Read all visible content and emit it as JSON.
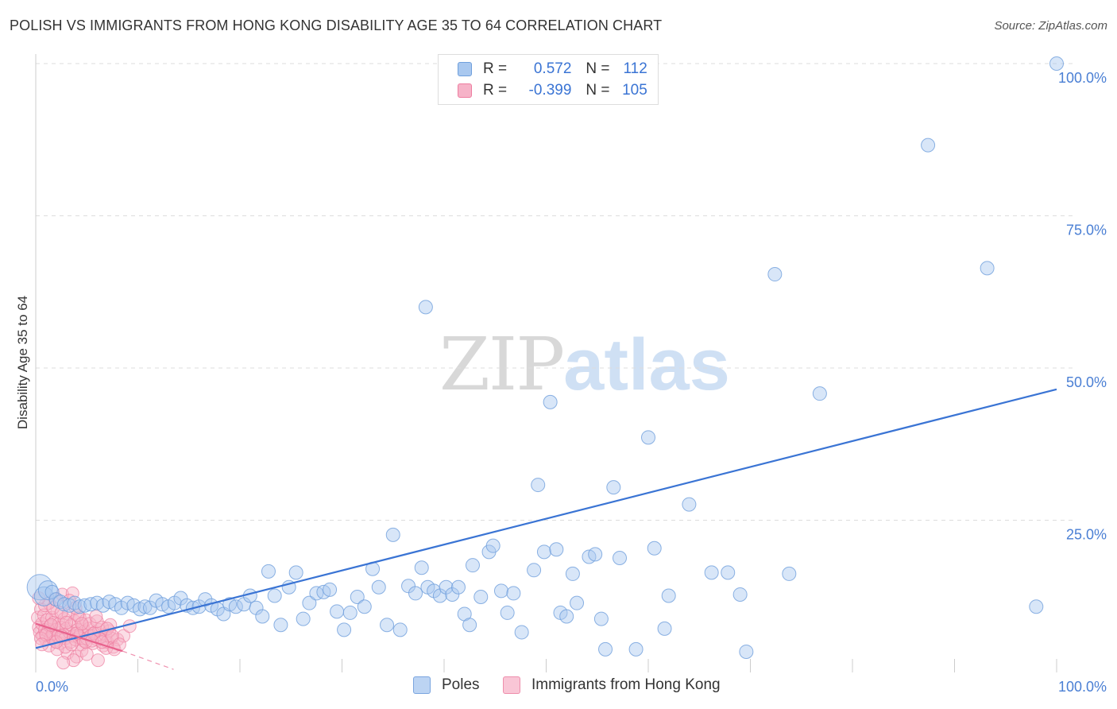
{
  "header": {
    "title": "POLISH VS IMMIGRANTS FROM HONG KONG DISABILITY AGE 35 TO 64 CORRELATION CHART",
    "source": "Source: ZipAtlas.com"
  },
  "watermark": {
    "zip": "ZIP",
    "atlas": "atlas"
  },
  "legend": {
    "rows": [
      {
        "r_label": "R =",
        "r_value": "0.572",
        "n_label": "N =",
        "n_value": "112"
      },
      {
        "r_label": "R =",
        "r_value": "-0.399",
        "n_label": "N =",
        "n_value": "105"
      }
    ]
  },
  "bottom_legend": {
    "series1": "Poles",
    "series2": "Immigrants from Hong Kong"
  },
  "colors": {
    "poles_fill": "#a9c8ef",
    "poles_stroke": "#6f9fdc",
    "poles_line": "#3a74d4",
    "hk_fill": "#f6b3c8",
    "hk_stroke": "#ee7da0",
    "hk_line": "#e8628d",
    "axis_text": "#4a7fd4",
    "grid": "#dddddd"
  },
  "chart_data": {
    "type": "scatter",
    "title": "POLISH VS IMMIGRANTS FROM HONG KONG DISABILITY AGE 35 TO 64 CORRELATION CHART",
    "xlabel": "",
    "ylabel": "Disability Age 35 to 64",
    "xlim": [
      0,
      100
    ],
    "ylim": [
      0,
      100
    ],
    "x_tick_labels": [
      "0.0%",
      "100.0%"
    ],
    "y_ticks": [
      25,
      50,
      75,
      100
    ],
    "y_tick_labels": [
      "25.0%",
      "50.0%",
      "75.0%",
      "100.0%"
    ],
    "grid": true,
    "legend_position": "top-center",
    "series": [
      {
        "name": "Poles",
        "r": 0.572,
        "n": 112,
        "trend": {
          "x": [
            0,
            100
          ],
          "y": [
            4.0,
            46.5
          ]
        },
        "points": [
          {
            "x": 0.4,
            "y": 14.0
          },
          {
            "x": 0.8,
            "y": 12.5
          },
          {
            "x": 1.2,
            "y": 13.5
          },
          {
            "x": 1.6,
            "y": 13.2
          },
          {
            "x": 2.0,
            "y": 12.0
          },
          {
            "x": 2.4,
            "y": 11.6
          },
          {
            "x": 2.8,
            "y": 11.2
          },
          {
            "x": 3.3,
            "y": 11.0
          },
          {
            "x": 3.8,
            "y": 11.4
          },
          {
            "x": 4.3,
            "y": 10.8
          },
          {
            "x": 4.8,
            "y": 11.0
          },
          {
            "x": 5.4,
            "y": 11.2
          },
          {
            "x": 6.0,
            "y": 11.4
          },
          {
            "x": 6.6,
            "y": 11.0
          },
          {
            "x": 7.2,
            "y": 11.6
          },
          {
            "x": 7.8,
            "y": 11.2
          },
          {
            "x": 8.4,
            "y": 10.6
          },
          {
            "x": 9.0,
            "y": 11.4
          },
          {
            "x": 9.6,
            "y": 11.0
          },
          {
            "x": 10.2,
            "y": 10.4
          },
          {
            "x": 10.7,
            "y": 10.8
          },
          {
            "x": 11.2,
            "y": 10.6
          },
          {
            "x": 11.8,
            "y": 11.8
          },
          {
            "x": 12.4,
            "y": 11.2
          },
          {
            "x": 13.0,
            "y": 10.8
          },
          {
            "x": 13.6,
            "y": 11.4
          },
          {
            "x": 14.2,
            "y": 12.2
          },
          {
            "x": 14.8,
            "y": 11.0
          },
          {
            "x": 15.4,
            "y": 10.6
          },
          {
            "x": 16.0,
            "y": 10.8
          },
          {
            "x": 16.6,
            "y": 12.0
          },
          {
            "x": 17.2,
            "y": 11.0
          },
          {
            "x": 17.8,
            "y": 10.4
          },
          {
            "x": 18.4,
            "y": 9.6
          },
          {
            "x": 19.0,
            "y": 11.2
          },
          {
            "x": 19.6,
            "y": 10.8
          },
          {
            "x": 20.4,
            "y": 11.2
          },
          {
            "x": 21.0,
            "y": 12.6
          },
          {
            "x": 21.6,
            "y": 10.6
          },
          {
            "x": 22.2,
            "y": 9.2
          },
          {
            "x": 22.8,
            "y": 16.6
          },
          {
            "x": 23.4,
            "y": 12.6
          },
          {
            "x": 24.0,
            "y": 7.8
          },
          {
            "x": 24.8,
            "y": 14.0
          },
          {
            "x": 25.5,
            "y": 16.4
          },
          {
            "x": 26.2,
            "y": 8.8
          },
          {
            "x": 26.8,
            "y": 11.4
          },
          {
            "x": 27.5,
            "y": 13.0
          },
          {
            "x": 28.2,
            "y": 13.2
          },
          {
            "x": 28.8,
            "y": 13.6
          },
          {
            "x": 29.5,
            "y": 10.0
          },
          {
            "x": 30.2,
            "y": 7.0
          },
          {
            "x": 30.8,
            "y": 9.8
          },
          {
            "x": 31.5,
            "y": 12.4
          },
          {
            "x": 32.2,
            "y": 10.8
          },
          {
            "x": 33.0,
            "y": 17.0
          },
          {
            "x": 33.6,
            "y": 14.0
          },
          {
            "x": 34.4,
            "y": 7.8
          },
          {
            "x": 35.0,
            "y": 22.6
          },
          {
            "x": 35.7,
            "y": 7.0
          },
          {
            "x": 36.5,
            "y": 14.2
          },
          {
            "x": 37.2,
            "y": 13.0
          },
          {
            "x": 37.8,
            "y": 17.2
          },
          {
            "x": 38.4,
            "y": 14.0
          },
          {
            "x": 39.0,
            "y": 13.4
          },
          {
            "x": 39.6,
            "y": 12.6
          },
          {
            "x": 40.2,
            "y": 14.0
          },
          {
            "x": 40.8,
            "y": 12.8
          },
          {
            "x": 41.4,
            "y": 14.0
          },
          {
            "x": 42.0,
            "y": 9.6
          },
          {
            "x": 42.5,
            "y": 7.8
          },
          {
            "x": 42.8,
            "y": 17.6
          },
          {
            "x": 43.6,
            "y": 12.4
          },
          {
            "x": 44.4,
            "y": 19.8
          },
          {
            "x": 44.8,
            "y": 20.8
          },
          {
            "x": 45.6,
            "y": 13.4
          },
          {
            "x": 46.2,
            "y": 9.8
          },
          {
            "x": 46.8,
            "y": 13.0
          },
          {
            "x": 47.6,
            "y": 6.6
          },
          {
            "x": 38.2,
            "y": 60.0
          },
          {
            "x": 48.8,
            "y": 16.8
          },
          {
            "x": 49.2,
            "y": 30.8
          },
          {
            "x": 49.8,
            "y": 19.8
          },
          {
            "x": 50.4,
            "y": 44.4
          },
          {
            "x": 51.0,
            "y": 20.2
          },
          {
            "x": 51.4,
            "y": 9.8
          },
          {
            "x": 52.0,
            "y": 9.2
          },
          {
            "x": 52.6,
            "y": 16.2
          },
          {
            "x": 53.0,
            "y": 11.4
          },
          {
            "x": 54.2,
            "y": 19.0
          },
          {
            "x": 54.8,
            "y": 19.4
          },
          {
            "x": 55.4,
            "y": 8.8
          },
          {
            "x": 55.8,
            "y": 3.8
          },
          {
            "x": 56.6,
            "y": 30.4
          },
          {
            "x": 57.2,
            "y": 18.8
          },
          {
            "x": 58.8,
            "y": 3.8
          },
          {
            "x": 60.0,
            "y": 38.6
          },
          {
            "x": 60.6,
            "y": 20.4
          },
          {
            "x": 61.6,
            "y": 7.2
          },
          {
            "x": 62.0,
            "y": 12.6
          },
          {
            "x": 64.0,
            "y": 27.6
          },
          {
            "x": 66.2,
            "y": 16.4
          },
          {
            "x": 67.8,
            "y": 16.4
          },
          {
            "x": 69.6,
            "y": 3.4
          },
          {
            "x": 69.0,
            "y": 12.8
          },
          {
            "x": 72.4,
            "y": 65.4
          },
          {
            "x": 73.8,
            "y": 16.2
          },
          {
            "x": 76.8,
            "y": 45.8
          },
          {
            "x": 87.4,
            "y": 86.6
          },
          {
            "x": 93.2,
            "y": 66.4
          },
          {
            "x": 98.0,
            "y": 10.8
          },
          {
            "x": 100.0,
            "y": 100.0
          }
        ]
      },
      {
        "name": "Immigrants from Hong Kong",
        "r": -0.399,
        "n": 105,
        "trend": {
          "x": [
            0,
            8.5
          ],
          "y": [
            8.0,
            3.5
          ]
        },
        "trend_extension": {
          "x": [
            8.5,
            13.5
          ],
          "y": [
            3.5,
            0.5
          ]
        },
        "points": [
          {
            "x": 0.2,
            "y": 9.0
          },
          {
            "x": 0.3,
            "y": 7.4
          },
          {
            "x": 0.4,
            "y": 6.6
          },
          {
            "x": 0.5,
            "y": 10.4
          },
          {
            "x": 0.6,
            "y": 8.0
          },
          {
            "x": 0.7,
            "y": 6.0
          },
          {
            "x": 0.8,
            "y": 9.4
          },
          {
            "x": 0.9,
            "y": 7.0
          },
          {
            "x": 1.0,
            "y": 5.4
          },
          {
            "x": 1.1,
            "y": 8.6
          },
          {
            "x": 1.2,
            "y": 6.8
          },
          {
            "x": 1.3,
            "y": 11.4
          },
          {
            "x": 1.4,
            "y": 7.6
          },
          {
            "x": 1.5,
            "y": 5.8
          },
          {
            "x": 1.6,
            "y": 9.0
          },
          {
            "x": 1.7,
            "y": 6.4
          },
          {
            "x": 1.8,
            "y": 8.2
          },
          {
            "x": 1.9,
            "y": 5.2
          },
          {
            "x": 2.0,
            "y": 7.0
          },
          {
            "x": 2.1,
            "y": 10.0
          },
          {
            "x": 2.2,
            "y": 6.0
          },
          {
            "x": 2.3,
            "y": 8.0
          },
          {
            "x": 2.4,
            "y": 4.8
          },
          {
            "x": 2.5,
            "y": 7.4
          },
          {
            "x": 2.6,
            "y": 12.8
          },
          {
            "x": 2.7,
            "y": 6.2
          },
          {
            "x": 2.8,
            "y": 8.8
          },
          {
            "x": 2.9,
            "y": 5.6
          },
          {
            "x": 3.0,
            "y": 7.2
          },
          {
            "x": 3.1,
            "y": 3.2
          },
          {
            "x": 3.2,
            "y": 9.6
          },
          {
            "x": 3.3,
            "y": 6.6
          },
          {
            "x": 3.4,
            "y": 5.0
          },
          {
            "x": 3.5,
            "y": 7.8
          },
          {
            "x": 3.6,
            "y": 13.0
          },
          {
            "x": 3.7,
            "y": 6.0
          },
          {
            "x": 3.8,
            "y": 8.4
          },
          {
            "x": 3.9,
            "y": 5.4
          },
          {
            "x": 4.0,
            "y": 2.6
          },
          {
            "x": 4.1,
            "y": 7.0
          },
          {
            "x": 4.2,
            "y": 5.8
          },
          {
            "x": 4.3,
            "y": 9.0
          },
          {
            "x": 4.4,
            "y": 6.4
          },
          {
            "x": 4.5,
            "y": 4.6
          },
          {
            "x": 4.6,
            "y": 7.6
          },
          {
            "x": 4.7,
            "y": 5.2
          },
          {
            "x": 4.8,
            "y": 6.8
          },
          {
            "x": 4.9,
            "y": 8.6
          },
          {
            "x": 5.0,
            "y": 5.6
          },
          {
            "x": 5.2,
            "y": 7.2
          },
          {
            "x": 5.4,
            "y": 6.0
          },
          {
            "x": 5.6,
            "y": 4.8
          },
          {
            "x": 5.8,
            "y": 6.6
          },
          {
            "x": 6.0,
            "y": 5.4
          },
          {
            "x": 6.2,
            "y": 7.0
          },
          {
            "x": 6.4,
            "y": 5.8
          },
          {
            "x": 6.6,
            "y": 4.4
          },
          {
            "x": 6.8,
            "y": 6.2
          },
          {
            "x": 7.0,
            "y": 5.0
          },
          {
            "x": 7.2,
            "y": 6.8
          },
          {
            "x": 7.4,
            "y": 5.6
          },
          {
            "x": 7.6,
            "y": 4.2
          },
          {
            "x": 8.0,
            "y": 5.4
          },
          {
            "x": 8.6,
            "y": 6.0
          },
          {
            "x": 9.2,
            "y": 7.6
          },
          {
            "x": 0.5,
            "y": 5.6
          },
          {
            "x": 0.9,
            "y": 11.0
          },
          {
            "x": 1.3,
            "y": 4.4
          },
          {
            "x": 1.7,
            "y": 10.6
          },
          {
            "x": 2.1,
            "y": 3.8
          },
          {
            "x": 2.5,
            "y": 9.8
          },
          {
            "x": 2.9,
            "y": 4.2
          },
          {
            "x": 3.3,
            "y": 11.8
          },
          {
            "x": 3.7,
            "y": 2.0
          },
          {
            "x": 4.1,
            "y": 9.4
          },
          {
            "x": 4.5,
            "y": 3.6
          },
          {
            "x": 4.9,
            "y": 5.0
          },
          {
            "x": 5.3,
            "y": 8.0
          },
          {
            "x": 5.7,
            "y": 6.4
          },
          {
            "x": 6.1,
            "y": 2.0
          },
          {
            "x": 6.5,
            "y": 7.4
          },
          {
            "x": 6.9,
            "y": 4.0
          },
          {
            "x": 7.3,
            "y": 7.8
          },
          {
            "x": 7.7,
            "y": 3.8
          },
          {
            "x": 1.0,
            "y": 6.2
          },
          {
            "x": 1.5,
            "y": 7.8
          },
          {
            "x": 2.0,
            "y": 5.0
          },
          {
            "x": 2.5,
            "y": 6.0
          },
          {
            "x": 3.0,
            "y": 8.2
          },
          {
            "x": 3.5,
            "y": 4.6
          },
          {
            "x": 4.0,
            "y": 6.4
          },
          {
            "x": 4.5,
            "y": 8.0
          },
          {
            "x": 5.0,
            "y": 3.0
          },
          {
            "x": 5.5,
            "y": 5.2
          },
          {
            "x": 6.0,
            "y": 8.4
          },
          {
            "x": 6.5,
            "y": 5.0
          },
          {
            "x": 7.0,
            "y": 7.2
          },
          {
            "x": 7.5,
            "y": 6.0
          },
          {
            "x": 8.2,
            "y": 4.6
          },
          {
            "x": 0.3,
            "y": 12.2
          },
          {
            "x": 0.6,
            "y": 4.6
          },
          {
            "x": 1.9,
            "y": 12.0
          },
          {
            "x": 3.9,
            "y": 10.6
          },
          {
            "x": 5.9,
            "y": 9.2
          },
          {
            "x": 2.7,
            "y": 1.6
          }
        ]
      }
    ]
  }
}
